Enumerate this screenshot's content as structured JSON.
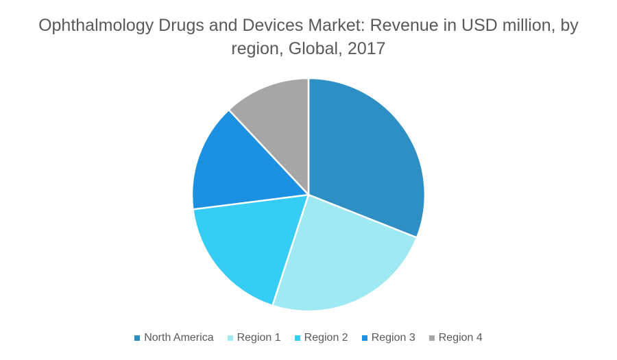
{
  "chart_data": {
    "type": "pie",
    "title": "Ophthalmology Drugs and Devices Market: Revenue in USD million, by region, Global, 2017",
    "categories": [
      "North America",
      "Region 1",
      "Region 2",
      "Region 3",
      "Region 4"
    ],
    "values": [
      31,
      24,
      18,
      15,
      12
    ],
    "colors": [
      "#2E8FC4",
      "#9EE9F2",
      "#35CCF5",
      "#1C91E2",
      "#A6A6A6"
    ],
    "legend_position": "bottom",
    "start_angle": "12 o'clock",
    "direction": "clockwise"
  }
}
